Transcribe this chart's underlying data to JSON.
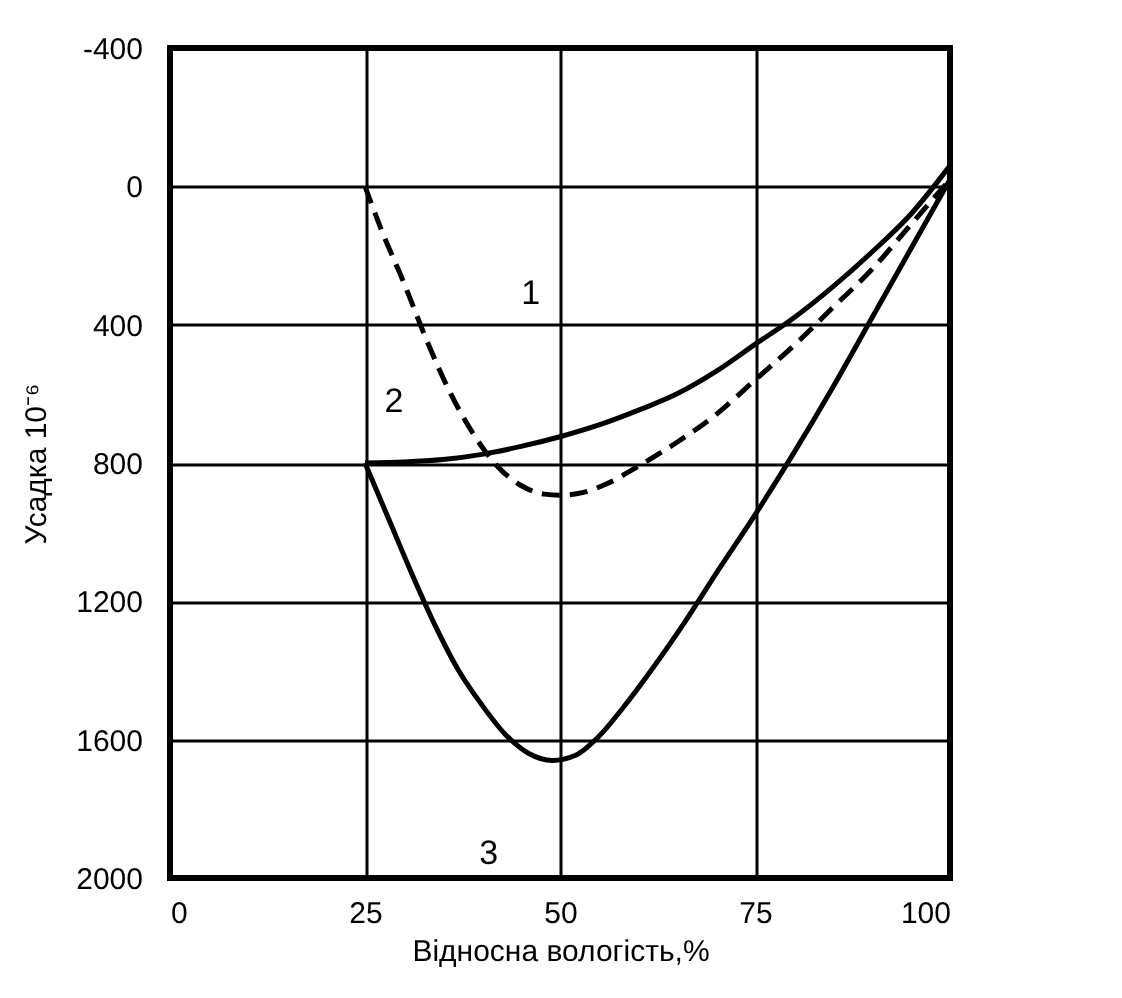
{
  "chart_data": {
    "type": "line",
    "xlabel": "Відносна вологість,%",
    "ylabel": "Усадка 10⁻⁶",
    "xlim": [
      0,
      100
    ],
    "xticks": [
      0,
      25,
      50,
      75,
      100
    ],
    "ylim": [
      2000,
      -400
    ],
    "yticks": [
      -400,
      0,
      400,
      800,
      1200,
      1600,
      2000
    ],
    "grid": true,
    "series": [
      {
        "name": "1",
        "x": [
          25,
          27,
          30,
          33,
          36,
          39,
          42,
          45,
          48,
          50,
          53,
          56,
          60,
          65,
          70,
          75,
          80,
          85,
          90,
          95,
          100
        ],
        "values": [
          0,
          120,
          280,
          450,
          600,
          720,
          810,
          865,
          890,
          893,
          885,
          860,
          810,
          740,
          660,
          560,
          460,
          350,
          240,
          110,
          -20
        ],
        "color": "#000000",
        "line_style": "dashed"
      },
      {
        "name": "2",
        "x": [
          25,
          30,
          35,
          40,
          45,
          50,
          55,
          60,
          65,
          70,
          75,
          80,
          85,
          90,
          95,
          100
        ],
        "values": [
          800,
          797,
          790,
          775,
          752,
          724,
          690,
          648,
          600,
          535,
          457,
          380,
          290,
          190,
          80,
          -60
        ],
        "color": "#000000",
        "line_style": "solid"
      },
      {
        "name": "3",
        "x": [
          25,
          28,
          31,
          34,
          37,
          40,
          43,
          46,
          49,
          52,
          55,
          58,
          62,
          66,
          70,
          75,
          80,
          85,
          90,
          95,
          100
        ],
        "values": [
          800,
          960,
          1120,
          1270,
          1400,
          1500,
          1585,
          1640,
          1660,
          1645,
          1590,
          1510,
          1390,
          1260,
          1120,
          950,
          770,
          580,
          380,
          180,
          -20
        ],
        "color": "#000000",
        "line_style": "solid"
      }
    ]
  }
}
